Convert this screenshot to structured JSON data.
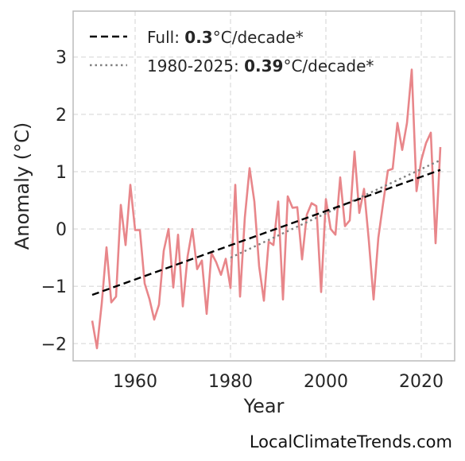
{
  "chart_data": {
    "type": "line",
    "xlabel": "Year",
    "ylabel": "Anomaly (°C)",
    "xlim": [
      1947,
      2027
    ],
    "ylim": [
      -2.3,
      3.8
    ],
    "xticks": [
      1960,
      1980,
      2000,
      2020
    ],
    "yticks": [
      -2,
      -1,
      0,
      1,
      2,
      3
    ],
    "ytick_labels": [
      "−2",
      "−1",
      "0",
      "1",
      "2",
      "3"
    ],
    "grid": true,
    "legend_position": "top-left",
    "series": [
      {
        "style": "solid",
        "color": "#e8868a",
        "x": [
          1951,
          1952,
          1953,
          1954,
          1955,
          1956,
          1957,
          1958,
          1959,
          1960,
          1961,
          1962,
          1963,
          1964,
          1965,
          1966,
          1967,
          1968,
          1969,
          1970,
          1971,
          1972,
          1973,
          1974,
          1975,
          1976,
          1977,
          1978,
          1979,
          1980,
          1981,
          1982,
          1983,
          1984,
          1985,
          1986,
          1987,
          1988,
          1989,
          1990,
          1991,
          1992,
          1993,
          1994,
          1995,
          1996,
          1997,
          1998,
          1999,
          2000,
          2001,
          2002,
          2003,
          2004,
          2005,
          2006,
          2007,
          2008,
          2009,
          2010,
          2011,
          2012,
          2013,
          2014,
          2015,
          2016,
          2017,
          2018,
          2019,
          2020,
          2021,
          2022,
          2023,
          2024
        ],
        "y": [
          -1.6,
          -2.08,
          -1.3,
          -0.32,
          -1.28,
          -1.18,
          0.42,
          -0.28,
          0.77,
          -0.02,
          -0.02,
          -0.95,
          -1.22,
          -1.58,
          -1.32,
          -0.38,
          0.0,
          -1.02,
          -0.1,
          -1.35,
          -0.48,
          0.0,
          -0.7,
          -0.55,
          -1.48,
          -0.42,
          -0.58,
          -0.8,
          -0.52,
          -1.03,
          0.77,
          -1.18,
          0.2,
          1.06,
          0.48,
          -0.65,
          -1.25,
          -0.22,
          -0.28,
          0.48,
          -1.23,
          0.57,
          0.37,
          0.38,
          -0.53,
          0.25,
          0.45,
          0.4,
          -1.1,
          0.52,
          0.0,
          -0.1,
          0.9,
          0.05,
          0.15,
          1.35,
          0.28,
          0.7,
          -0.2,
          -1.23,
          -0.15,
          0.45,
          1.02,
          1.05,
          1.85,
          1.38,
          1.85,
          2.78,
          0.66,
          1.2,
          1.5,
          1.68,
          -0.25,
          1.43
        ]
      },
      {
        "name": "Full: 0.3°C/decade*",
        "style": "dashed",
        "color": "#000000",
        "x": [
          1951,
          2024
        ],
        "y": [
          -1.15,
          1.03
        ]
      },
      {
        "name": "1980-2025: 0.39°C/decade*",
        "style": "dotted",
        "color": "#808080",
        "x": [
          1980,
          2024
        ],
        "y": [
          -0.5,
          1.2
        ]
      }
    ],
    "legend": [
      {
        "prefix": "Full: ",
        "bold": "0.3",
        "suffix": "°C/decade*",
        "style": "dashed",
        "color": "#000000"
      },
      {
        "prefix": "1980-2025: ",
        "bold": "0.39",
        "suffix": "°C/decade*",
        "style": "dotted",
        "color": "#808080"
      }
    ]
  },
  "watermark": "LocalClimateTrends.com"
}
